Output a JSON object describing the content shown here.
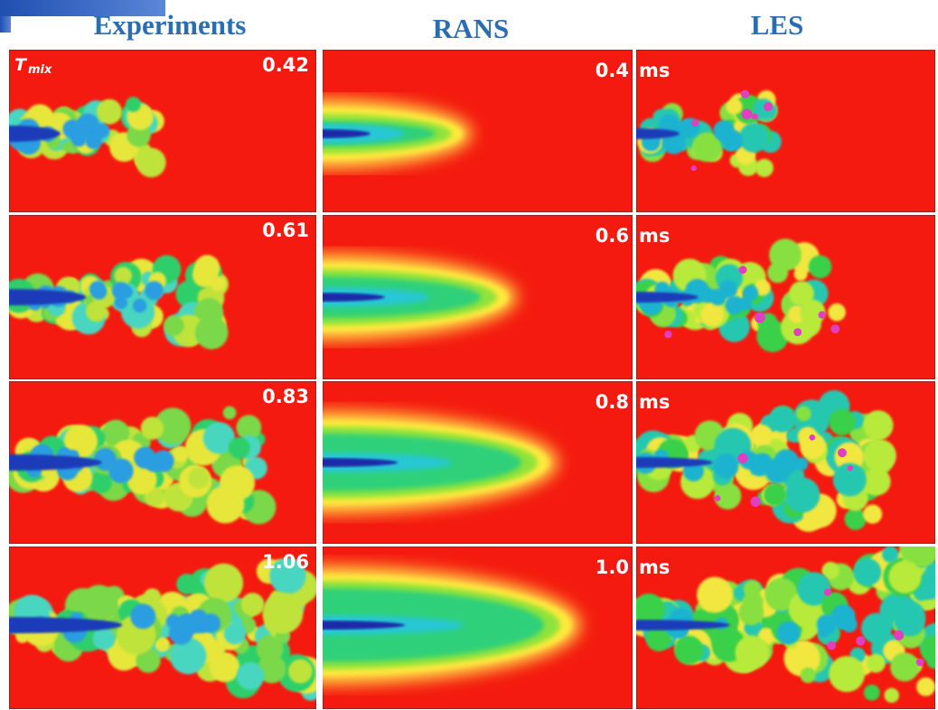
{
  "headers": [
    "Experiments",
    "RANS",
    "LES"
  ],
  "variable": {
    "symbol": "T",
    "subscript": "mix"
  },
  "rows": [
    {
      "experiment": "0.42",
      "rans": "0.4",
      "les": "ms"
    },
    {
      "experiment": "0.61",
      "rans": "0.6",
      "les": "ms"
    },
    {
      "experiment": "0.83",
      "rans": "0.8",
      "les": "ms"
    },
    {
      "experiment": "1.06",
      "rans": "1.0",
      "les": "ms"
    }
  ]
}
